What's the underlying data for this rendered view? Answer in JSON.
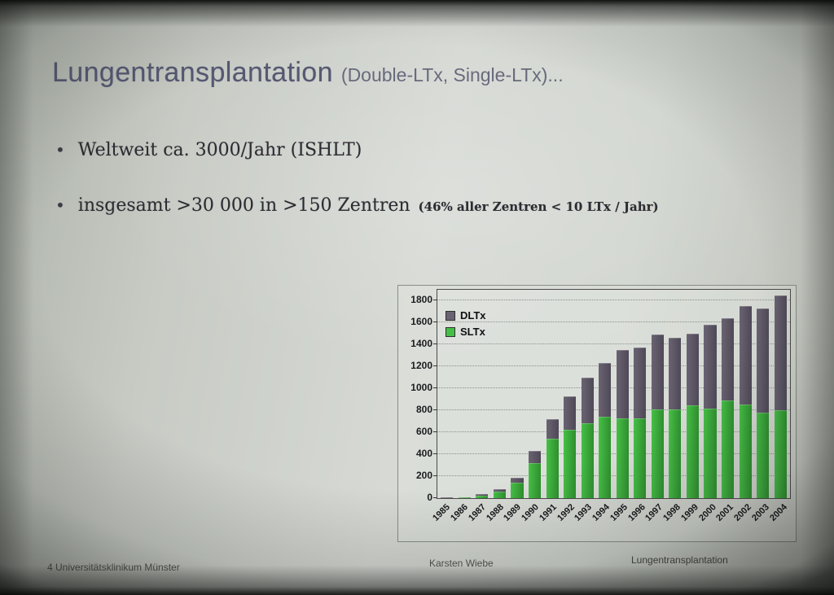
{
  "slide": {
    "title": "Lungentransplantation",
    "title_suffix": "(Double-LTx, Single-LTx)...",
    "bullets": [
      {
        "text": "Weltweit ca. 3000/Jahr (ISHLT)",
        "note": ""
      },
      {
        "text": "insgesamt >30 000 in >150 Zentren",
        "note": "(46% aller Zentren < 10 LTx / Jahr)"
      }
    ],
    "footer": {
      "left": "4 Universitätsklinikum Münster",
      "center": "Karsten Wiebe",
      "right": "Lungentransplantation"
    }
  },
  "chart_data": {
    "type": "bar",
    "stacked": true,
    "title": "",
    "xlabel": "",
    "ylabel": "",
    "ylim": [
      0,
      1900
    ],
    "ymax_tick": 1800,
    "ytick_step": 200,
    "grid": "dotted",
    "legend_position": "top-left",
    "legend_order": [
      "DLTx",
      "SLTx"
    ],
    "categories": [
      1985,
      1986,
      1987,
      1988,
      1989,
      1990,
      1991,
      1992,
      1993,
      1994,
      1995,
      1996,
      1997,
      1998,
      1999,
      2000,
      2001,
      2002,
      2003,
      2004
    ],
    "series": [
      {
        "name": "SLTx",
        "color": "#46bf46",
        "color_edge": "#2e8f2e",
        "values": [
          2,
          5,
          25,
          60,
          140,
          320,
          545,
          620,
          680,
          740,
          730,
          730,
          810,
          810,
          845,
          820,
          890,
          850,
          780,
          800
        ]
      },
      {
        "name": "DLTx",
        "color": "#6a6372",
        "color_edge": "#4e4857",
        "values": [
          2,
          3,
          10,
          25,
          45,
          110,
          175,
          310,
          420,
          490,
          620,
          640,
          680,
          650,
          655,
          760,
          750,
          900,
          950,
          1050
        ]
      }
    ]
  },
  "colors": {
    "title": "#565872",
    "body_text": "#2c2b32",
    "slide_bg": "#cfd3cd",
    "sltx_green": "#46bf46",
    "dltx_gray": "#6a6372"
  }
}
